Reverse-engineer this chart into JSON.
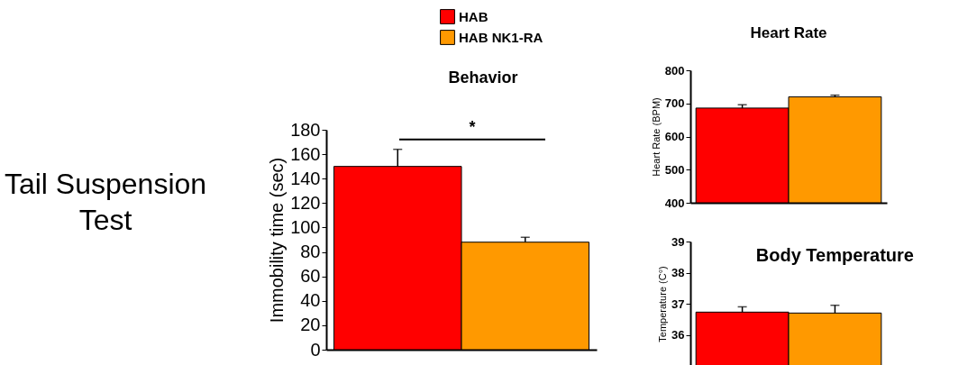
{
  "chart_data": [
    {
      "type": "bar",
      "title": "Behavior",
      "ylabel": "Immobility time (sec)",
      "categories": [
        null
      ],
      "series": [
        {
          "name": "HAB",
          "color": "#ff0000",
          "values": [
            150
          ],
          "errors": [
            14
          ]
        },
        {
          "name": "HAB NK1-RA",
          "color": "#ff9900",
          "values": [
            88
          ],
          "errors": [
            4
          ]
        }
      ],
      "ylim": [
        0,
        180
      ],
      "yticks": [
        0,
        20,
        40,
        60,
        80,
        100,
        120,
        140,
        160,
        180
      ],
      "grid": false,
      "legend": "top",
      "annotations": [
        "*",
        "Tail Suspension\nTest"
      ]
    },
    {
      "type": "bar",
      "title": "Heart  Rate",
      "ylabel": "Heart Rate (BPM)",
      "categories": [
        null
      ],
      "series": [
        {
          "color": "#ff0000",
          "values": [
            686
          ],
          "errors": [
            10
          ]
        },
        {
          "color": "#ff9900",
          "values": [
            720
          ],
          "errors": [
            5
          ]
        }
      ],
      "ylim": [
        400,
        800
      ],
      "yticks": [
        400,
        500,
        600,
        700,
        800
      ],
      "grid": false
    },
    {
      "type": "bar",
      "title": "Body Temperature",
      "ylabel": "Temperature (C°)",
      "categories": [
        null
      ],
      "series": [
        {
          "color": "#ff0000",
          "values": [
            36.73
          ],
          "errors": [
            0.17
          ]
        },
        {
          "color": "#ff9900",
          "values": [
            36.7
          ],
          "errors": [
            0.25
          ]
        }
      ],
      "ylim": [
        35,
        39
      ],
      "yticks": [
        36,
        37,
        38,
        39
      ],
      "grid": false
    }
  ]
}
